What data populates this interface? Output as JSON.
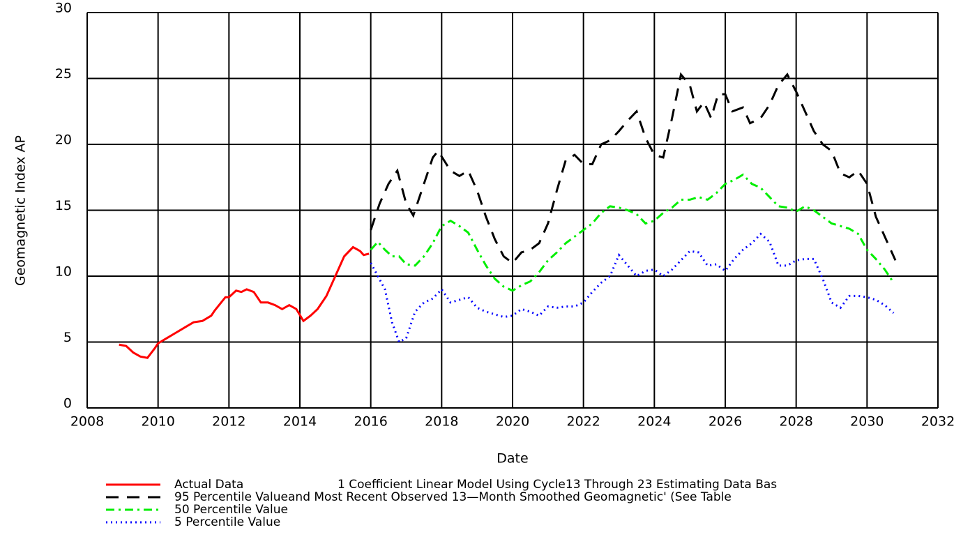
{
  "chart_data": {
    "type": "line",
    "xlabel": "Date",
    "ylabel": "Geomagnetic Index AP",
    "xlim": [
      2008,
      2032
    ],
    "xticks": [
      2008,
      2010,
      2012,
      2014,
      2016,
      2018,
      2020,
      2022,
      2024,
      2026,
      2028,
      2030,
      2032
    ],
    "ylim": [
      0,
      30
    ],
    "yticks": [
      0,
      5,
      10,
      15,
      20,
      25,
      30
    ],
    "grid": true,
    "annotations": [
      "1 Coefficient Linear Model Using Cycle13 Through 23 Estimating Data Bas",
      "and Most Recent Observed 13—Month Smoothed Geomagnetic' (See Table"
    ],
    "series": [
      {
        "name": "Actual Data",
        "color": "#ff0000",
        "dash": "solid",
        "x": [
          2008.9,
          2009.1,
          2009.3,
          2009.5,
          2009.7,
          2009.9,
          2010.0,
          2010.25,
          2010.5,
          2010.75,
          2011.0,
          2011.25,
          2011.5,
          2011.6,
          2011.9,
          2012.0,
          2012.2,
          2012.35,
          2012.5,
          2012.7,
          2012.9,
          2013.1,
          2013.3,
          2013.5,
          2013.7,
          2013.9,
          2014.1,
          2014.3,
          2014.5,
          2014.75,
          2015.0,
          2015.25,
          2015.5,
          2015.7,
          2015.8,
          2015.95
        ],
        "values": [
          4.8,
          4.7,
          4.2,
          3.9,
          3.8,
          4.5,
          4.9,
          5.3,
          5.7,
          6.1,
          6.5,
          6.6,
          7.0,
          7.4,
          8.4,
          8.4,
          8.9,
          8.8,
          9.0,
          8.8,
          8.0,
          8.0,
          7.8,
          7.5,
          7.8,
          7.5,
          6.6,
          7.0,
          7.5,
          8.5,
          10.0,
          11.5,
          12.2,
          11.9,
          11.6,
          11.7
        ]
      },
      {
        "name": "95 Percentile Value",
        "color": "#000000",
        "dash": "dashed",
        "x": [
          2016.0,
          2016.25,
          2016.5,
          2016.75,
          2017.0,
          2017.2,
          2017.5,
          2017.75,
          2017.9,
          2018.25,
          2018.5,
          2018.75,
          2019.0,
          2019.25,
          2019.5,
          2019.75,
          2020.0,
          2020.25,
          2020.5,
          2020.75,
          2021.0,
          2021.25,
          2021.5,
          2021.75,
          2022.0,
          2022.25,
          2022.5,
          2022.75,
          2023.0,
          2023.25,
          2023.5,
          2023.75,
          2024.0,
          2024.25,
          2024.5,
          2024.75,
          2025.0,
          2025.2,
          2025.4,
          2025.6,
          2025.8,
          2026.0,
          2026.2,
          2026.5,
          2026.7,
          2027.0,
          2027.25,
          2027.5,
          2027.75,
          2028.0,
          2028.25,
          2028.5,
          2028.75,
          2029.0,
          2029.25,
          2029.5,
          2029.75,
          2030.0,
          2030.25,
          2030.5,
          2030.8
        ],
        "values": [
          13.5,
          15.5,
          17.0,
          18.0,
          15.5,
          14.6,
          17.0,
          19.0,
          19.5,
          18.0,
          17.6,
          18.0,
          16.5,
          14.5,
          12.8,
          11.5,
          11.0,
          11.8,
          12.0,
          12.5,
          14.0,
          16.5,
          18.8,
          19.2,
          18.5,
          18.5,
          20.0,
          20.3,
          21.0,
          21.8,
          22.5,
          20.5,
          19.2,
          19.0,
          22.0,
          25.3,
          24.5,
          22.5,
          23.2,
          22.0,
          23.8,
          23.8,
          22.5,
          22.8,
          21.6,
          22.0,
          23.0,
          24.5,
          25.3,
          24.0,
          22.5,
          21.0,
          20.0,
          19.5,
          17.8,
          17.5,
          18.0,
          17.0,
          14.5,
          13.0,
          11.2
        ]
      },
      {
        "name": "50 Percentile Value",
        "color": "#00ee00",
        "dash": "dashdot",
        "x": [
          2016.0,
          2016.2,
          2016.4,
          2016.6,
          2016.8,
          2017.0,
          2017.25,
          2017.5,
          2017.75,
          2018.0,
          2018.25,
          2018.5,
          2018.75,
          2019.0,
          2019.25,
          2019.5,
          2019.75,
          2020.0,
          2020.25,
          2020.5,
          2020.75,
          2021.0,
          2021.25,
          2021.5,
          2021.75,
          2022.0,
          2022.25,
          2022.5,
          2022.75,
          2023.0,
          2023.25,
          2023.5,
          2023.75,
          2024.0,
          2024.25,
          2024.5,
          2024.75,
          2025.0,
          2025.25,
          2025.5,
          2025.75,
          2026.0,
          2026.25,
          2026.5,
          2026.75,
          2027.0,
          2027.25,
          2027.5,
          2027.75,
          2028.0,
          2028.25,
          2028.5,
          2028.75,
          2029.0,
          2029.25,
          2029.5,
          2029.75,
          2030.0,
          2030.25,
          2030.5,
          2030.75
        ],
        "values": [
          12.0,
          12.6,
          12.0,
          11.5,
          11.5,
          10.9,
          10.8,
          11.5,
          12.5,
          13.8,
          14.2,
          13.8,
          13.3,
          12.0,
          10.8,
          9.8,
          9.2,
          8.9,
          9.3,
          9.6,
          10.3,
          11.2,
          11.8,
          12.5,
          13.0,
          13.5,
          14.0,
          14.8,
          15.3,
          15.2,
          15.0,
          14.7,
          14.0,
          14.2,
          14.8,
          15.2,
          15.8,
          15.8,
          16.0,
          15.8,
          16.3,
          17.0,
          17.3,
          17.7,
          17.0,
          16.7,
          16.0,
          15.3,
          15.2,
          14.9,
          15.3,
          15.0,
          14.5,
          14.0,
          13.8,
          13.6,
          13.2,
          12.0,
          11.3,
          10.5,
          9.5
        ]
      },
      {
        "name": "5 Percentile Value",
        "color": "#0000ff",
        "dash": "dotted",
        "x": [
          2016.0,
          2016.2,
          2016.4,
          2016.6,
          2016.8,
          2017.0,
          2017.25,
          2017.5,
          2017.75,
          2018.0,
          2018.25,
          2018.5,
          2018.75,
          2019.0,
          2019.25,
          2019.5,
          2019.75,
          2020.0,
          2020.25,
          2020.5,
          2020.75,
          2021.0,
          2021.25,
          2021.5,
          2021.75,
          2022.0,
          2022.25,
          2022.5,
          2022.75,
          2023.0,
          2023.25,
          2023.5,
          2023.75,
          2024.0,
          2024.25,
          2024.5,
          2024.75,
          2025.0,
          2025.25,
          2025.5,
          2025.75,
          2026.0,
          2026.25,
          2026.5,
          2026.75,
          2027.0,
          2027.25,
          2027.5,
          2027.75,
          2028.0,
          2028.25,
          2028.5,
          2028.75,
          2029.0,
          2029.25,
          2029.5,
          2029.75,
          2030.0,
          2030.25,
          2030.5,
          2030.75
        ],
        "values": [
          11.0,
          10.0,
          9.0,
          6.5,
          5.0,
          5.3,
          7.3,
          8.0,
          8.3,
          9.0,
          8.0,
          8.2,
          8.4,
          7.6,
          7.3,
          7.1,
          6.9,
          7.0,
          7.5,
          7.3,
          7.0,
          7.7,
          7.6,
          7.7,
          7.7,
          8.0,
          8.8,
          9.5,
          10.0,
          11.6,
          10.8,
          10.0,
          10.4,
          10.5,
          10.0,
          10.5,
          11.2,
          11.9,
          11.8,
          10.8,
          10.9,
          10.4,
          11.3,
          12.0,
          12.5,
          13.2,
          12.6,
          10.8,
          10.8,
          11.2,
          11.3,
          11.3,
          9.8,
          8.0,
          7.6,
          8.5,
          8.5,
          8.4,
          8.2,
          7.8,
          7.2
        ]
      }
    ]
  }
}
